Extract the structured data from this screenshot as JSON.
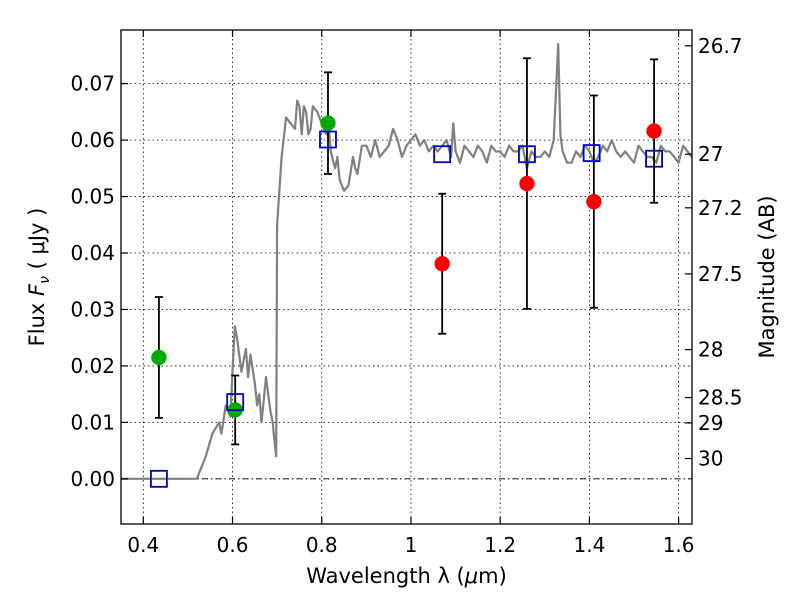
{
  "chart_data": {
    "type": "scatter",
    "xlabel_prefix": "Wavelength  λ (",
    "xlabel_unit_mu": "μ",
    "xlabel_suffix": "m)",
    "ylabel_text": "Flux ",
    "ylabel_math": "F",
    "ylabel_sub": "ν",
    "ylabel_unit": " ( μJy )",
    "ylabel_right": "Magnitude (AB)",
    "xlim": [
      0.35,
      1.63
    ],
    "ylim": [
      -0.008,
      0.0795
    ],
    "x_ticks": [
      0.4,
      0.6,
      0.8,
      1.0,
      1.2,
      1.4,
      1.6
    ],
    "x_tick_labels": [
      "0.4",
      "0.6",
      "0.8",
      "1",
      "1.2",
      "1.4",
      "1.6"
    ],
    "y_ticks": [
      0.0,
      0.01,
      0.02,
      0.03,
      0.04,
      0.05,
      0.06,
      0.07
    ],
    "y_tick_labels": [
      "0.00",
      "0.01",
      "0.02",
      "0.03",
      "0.04",
      "0.05",
      "0.06",
      "0.07"
    ],
    "right_ticks": [
      {
        "flux": 0.0767,
        "label": "26.7"
      },
      {
        "flux": 0.0575,
        "label": "27"
      },
      {
        "flux": 0.048,
        "label": "27.2"
      },
      {
        "flux": 0.0363,
        "label": "27.5"
      },
      {
        "flux": 0.0229,
        "label": "28"
      },
      {
        "flux": 0.0144,
        "label": "28.5"
      },
      {
        "flux": 0.0099,
        "label": "29"
      },
      {
        "flux": 0.0036,
        "label": "30"
      }
    ],
    "grid": true,
    "series": [
      {
        "marker": "circle",
        "color": "#00aa00",
        "points": [
          {
            "x": 0.435,
            "y": 0.0215,
            "yerr_low": 0.0107,
            "yerr_high": 0.0107
          },
          {
            "x": 0.606,
            "y": 0.0122,
            "yerr_low": 0.0061,
            "yerr_high": 0.0061
          },
          {
            "x": 0.814,
            "y": 0.063,
            "yerr_low": 0.009,
            "yerr_high": 0.009
          }
        ]
      },
      {
        "marker": "circle",
        "color": "#ff0000",
        "points": [
          {
            "x": 1.07,
            "y": 0.0381,
            "yerr_low": 0.0124,
            "yerr_high": 0.0124
          },
          {
            "x": 1.26,
            "y": 0.0523,
            "yerr_low": 0.0222,
            "yerr_high": 0.0222
          },
          {
            "x": 1.41,
            "y": 0.0491,
            "yerr_low": 0.0188,
            "yerr_high": 0.0188
          },
          {
            "x": 1.545,
            "y": 0.0616,
            "yerr_low": 0.0127,
            "yerr_high": 0.0127
          }
        ]
      },
      {
        "marker": "square-open",
        "color": "#0000cc",
        "points": [
          {
            "x": 0.435,
            "y": 0.0
          },
          {
            "x": 0.606,
            "y": 0.0136
          },
          {
            "x": 0.814,
            "y": 0.0601
          },
          {
            "x": 1.07,
            "y": 0.0575
          },
          {
            "x": 1.26,
            "y": 0.0575
          },
          {
            "x": 1.405,
            "y": 0.0577
          },
          {
            "x": 1.545,
            "y": 0.0567
          }
        ]
      }
    ],
    "model_spectrum": {
      "color": "#808080",
      "x": [
        0.35,
        0.52,
        0.54,
        0.555,
        0.57,
        0.575,
        0.585,
        0.59,
        0.595,
        0.6,
        0.605,
        0.61,
        0.62,
        0.63,
        0.635,
        0.64,
        0.65,
        0.655,
        0.66,
        0.665,
        0.67,
        0.675,
        0.68,
        0.685,
        0.69,
        0.695,
        0.698,
        0.7,
        0.71,
        0.72,
        0.73,
        0.74,
        0.745,
        0.75,
        0.755,
        0.76,
        0.765,
        0.77,
        0.775,
        0.78,
        0.79,
        0.8,
        0.81,
        0.815,
        0.82,
        0.83,
        0.835,
        0.84,
        0.85,
        0.86,
        0.87,
        0.875,
        0.88,
        0.89,
        0.9,
        0.91,
        0.92,
        0.93,
        0.94,
        0.95,
        0.96,
        0.97,
        0.98,
        0.99,
        1.0,
        1.01,
        1.02,
        1.03,
        1.04,
        1.05,
        1.06,
        1.07,
        1.08,
        1.09,
        1.095,
        1.1,
        1.11,
        1.12,
        1.13,
        1.14,
        1.15,
        1.16,
        1.17,
        1.18,
        1.19,
        1.2,
        1.21,
        1.22,
        1.23,
        1.24,
        1.25,
        1.26,
        1.27,
        1.28,
        1.29,
        1.3,
        1.31,
        1.32,
        1.33,
        1.335,
        1.34,
        1.35,
        1.36,
        1.37,
        1.38,
        1.39,
        1.4,
        1.41,
        1.42,
        1.43,
        1.44,
        1.45,
        1.46,
        1.47,
        1.48,
        1.49,
        1.5,
        1.51,
        1.52,
        1.53,
        1.54,
        1.55,
        1.56,
        1.57,
        1.58,
        1.59,
        1.6,
        1.61,
        1.62,
        1.63
      ],
      "y": [
        0.0,
        0.0,
        0.004,
        0.008,
        0.01,
        0.008,
        0.013,
        0.012,
        0.011,
        0.019,
        0.027,
        0.025,
        0.019,
        0.023,
        0.018,
        0.022,
        0.017,
        0.013,
        0.015,
        0.01,
        0.014,
        0.018,
        0.015,
        0.012,
        0.01,
        0.006,
        0.004,
        0.045,
        0.057,
        0.064,
        0.063,
        0.062,
        0.067,
        0.066,
        0.061,
        0.066,
        0.065,
        0.061,
        0.062,
        0.066,
        0.065,
        0.063,
        0.061,
        0.064,
        0.058,
        0.055,
        0.057,
        0.053,
        0.051,
        0.052,
        0.057,
        0.055,
        0.054,
        0.059,
        0.059,
        0.057,
        0.06,
        0.057,
        0.058,
        0.059,
        0.062,
        0.06,
        0.057,
        0.059,
        0.06,
        0.061,
        0.059,
        0.06,
        0.058,
        0.059,
        0.058,
        0.059,
        0.06,
        0.057,
        0.063,
        0.058,
        0.056,
        0.059,
        0.058,
        0.057,
        0.059,
        0.058,
        0.056,
        0.059,
        0.058,
        0.058,
        0.057,
        0.059,
        0.058,
        0.058,
        0.059,
        0.055,
        0.058,
        0.057,
        0.057,
        0.058,
        0.057,
        0.06,
        0.077,
        0.061,
        0.058,
        0.056,
        0.056,
        0.058,
        0.057,
        0.059,
        0.058,
        0.056,
        0.057,
        0.059,
        0.058,
        0.06,
        0.058,
        0.057,
        0.058,
        0.057,
        0.056,
        0.059,
        0.058,
        0.057,
        0.057,
        0.056,
        0.059,
        0.058,
        0.058,
        0.057,
        0.056,
        0.059,
        0.058,
        0.057
      ]
    },
    "zero_line": true
  }
}
